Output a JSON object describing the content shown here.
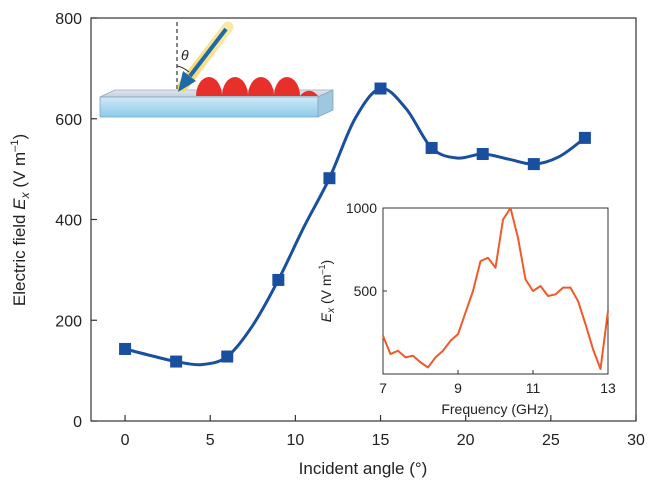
{
  "chart_data": [
    {
      "type": "line",
      "xlabel": "Incident angle (°)",
      "ylabel": {
        "main": "Electric field ",
        "var": "E",
        "sub": "x",
        "unit_open": " (V m",
        "sup": "–1",
        "unit_close": ")"
      },
      "xlim": [
        -2,
        30
      ],
      "ylim": [
        0,
        800
      ],
      "xticks": [
        0,
        5,
        10,
        15,
        20,
        25,
        30
      ],
      "yticks": [
        0,
        200,
        400,
        600,
        800
      ],
      "xtick_labels": [
        "0",
        "5",
        "10",
        "15",
        "20",
        "25",
        "30"
      ],
      "ytick_labels": [
        "0",
        "200",
        "400",
        "600",
        "800"
      ],
      "grid": false,
      "marker": "square",
      "color": "#1a4fa0",
      "series": [
        {
          "x": [
            0,
            3,
            6,
            9,
            12,
            15,
            18,
            21,
            24,
            27
          ],
          "y": [
            143,
            118,
            128,
            280,
            482,
            660,
            542,
            530,
            510,
            562
          ]
        }
      ],
      "curve": {
        "x": [
          0,
          1.5,
          3,
          4.5,
          6,
          7.5,
          9,
          10.5,
          12,
          13.5,
          15,
          16.5,
          18,
          19.5,
          21,
          22.5,
          24,
          25.5,
          27
        ],
        "y": [
          143,
          130,
          118,
          112,
          128,
          190,
          280,
          385,
          482,
          600,
          660,
          620,
          542,
          522,
          530,
          520,
          510,
          525,
          562
        ]
      },
      "inset_labels": {
        "theta": "θ"
      }
    },
    {
      "type": "line",
      "xlabel": "Frequency (GHz)",
      "ylabel": {
        "var": "E",
        "sub": "x",
        "unit_open": " (V m",
        "sup": "–1",
        "unit_close": ")"
      },
      "xlim": [
        7,
        13
      ],
      "ylim": [
        0,
        1000
      ],
      "xticks": [
        7,
        9,
        11,
        13
      ],
      "yticks": [
        500,
        1000
      ],
      "xtick_labels": [
        "7",
        "9",
        "11",
        "13"
      ],
      "ytick_labels": [
        "500",
        "1000"
      ],
      "color": "#f05a28",
      "series": [
        {
          "x": [
            7.0,
            7.2,
            7.4,
            7.6,
            7.8,
            8.0,
            8.2,
            8.4,
            8.6,
            8.8,
            9.0,
            9.2,
            9.4,
            9.6,
            9.8,
            10.0,
            10.2,
            10.4,
            10.6,
            10.8,
            11.0,
            11.2,
            11.4,
            11.6,
            11.8,
            12.0,
            12.2,
            12.4,
            12.6,
            12.8,
            13.0
          ],
          "y": [
            230,
            120,
            140,
            100,
            110,
            70,
            40,
            100,
            140,
            200,
            240,
            370,
            500,
            680,
            700,
            640,
            930,
            1000,
            820,
            570,
            500,
            530,
            470,
            480,
            520,
            520,
            440,
            300,
            150,
            30,
            380
          ]
        }
      ]
    }
  ]
}
